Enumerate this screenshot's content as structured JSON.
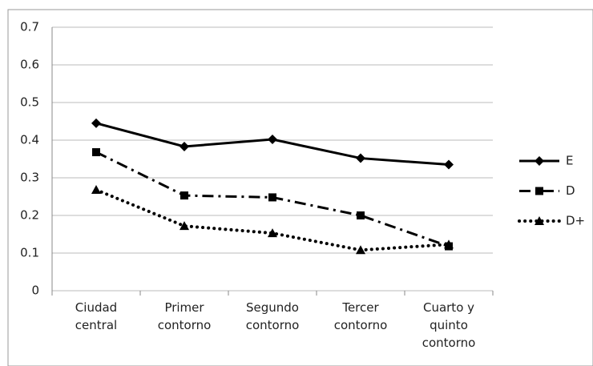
{
  "chart_data": {
    "type": "line",
    "categories": [
      "Ciudad central",
      "Primer contorno",
      "Segundo contorno",
      "Tercer contorno",
      "Cuarto y quinto contorno"
    ],
    "series": [
      {
        "name": "E",
        "color": "#000000",
        "line_style": "solid",
        "marker": "diamond",
        "values": [
          0.445,
          0.383,
          0.402,
          0.352,
          0.335
        ]
      },
      {
        "name": "D",
        "color": "#000000",
        "line_style": "dash-dot",
        "marker": "square",
        "values": [
          0.368,
          0.253,
          0.248,
          0.2,
          0.118
        ]
      },
      {
        "name": "D+",
        "color": "#000000",
        "line_style": "dotted",
        "marker": "triangle",
        "values": [
          0.268,
          0.172,
          0.153,
          0.108,
          0.123
        ]
      }
    ],
    "ylim": [
      0,
      0.7
    ],
    "yticks": [
      0,
      0.1,
      0.2,
      0.3,
      0.4,
      0.5,
      0.6,
      0.7
    ],
    "grid": true,
    "legend": "right"
  }
}
